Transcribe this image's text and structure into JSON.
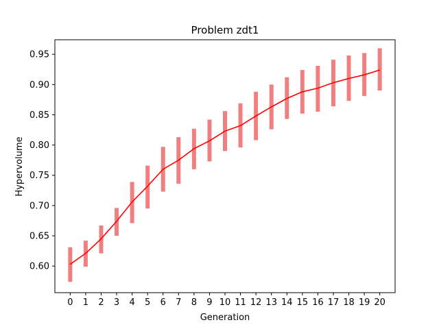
{
  "chart_data": {
    "type": "line",
    "title": "Problem zdt1",
    "xlabel": "Generation",
    "ylabel": "Hypervolume",
    "x": [
      0,
      1,
      2,
      3,
      4,
      5,
      6,
      7,
      8,
      9,
      10,
      11,
      12,
      13,
      14,
      15,
      16,
      17,
      18,
      19,
      20
    ],
    "x_ticks": [
      "0",
      "1",
      "2",
      "3",
      "4",
      "5",
      "6",
      "7",
      "8",
      "9",
      "10",
      "11",
      "12",
      "13",
      "14",
      "15",
      "16",
      "17",
      "18",
      "19",
      "20"
    ],
    "y_ticks": [
      "0.60",
      "0.65",
      "0.70",
      "0.75",
      "0.80",
      "0.85",
      "0.90",
      "0.95"
    ],
    "y_tick_values": [
      0.6,
      0.65,
      0.7,
      0.75,
      0.8,
      0.85,
      0.9,
      0.95
    ],
    "xlim": [
      -0.99,
      20.99
    ],
    "ylim": [
      0.556,
      0.974
    ],
    "grid": false,
    "series": [
      {
        "values": [
          0.603,
          0.621,
          0.645,
          0.674,
          0.706,
          0.732,
          0.76,
          0.775,
          0.794,
          0.807,
          0.823,
          0.832,
          0.848,
          0.863,
          0.877,
          0.888,
          0.894,
          0.903,
          0.91,
          0.916,
          0.924
        ],
        "color": "#ff0000"
      }
    ],
    "error_bars": {
      "color": "#f08080",
      "low": [
        0.574,
        0.599,
        0.621,
        0.65,
        0.671,
        0.695,
        0.723,
        0.736,
        0.76,
        0.773,
        0.79,
        0.796,
        0.808,
        0.826,
        0.843,
        0.852,
        0.855,
        0.864,
        0.873,
        0.881,
        0.89
      ],
      "high": [
        0.631,
        0.642,
        0.667,
        0.696,
        0.739,
        0.766,
        0.797,
        0.813,
        0.827,
        0.842,
        0.856,
        0.869,
        0.888,
        0.9,
        0.912,
        0.924,
        0.931,
        0.941,
        0.948,
        0.952,
        0.96
      ]
    }
  }
}
